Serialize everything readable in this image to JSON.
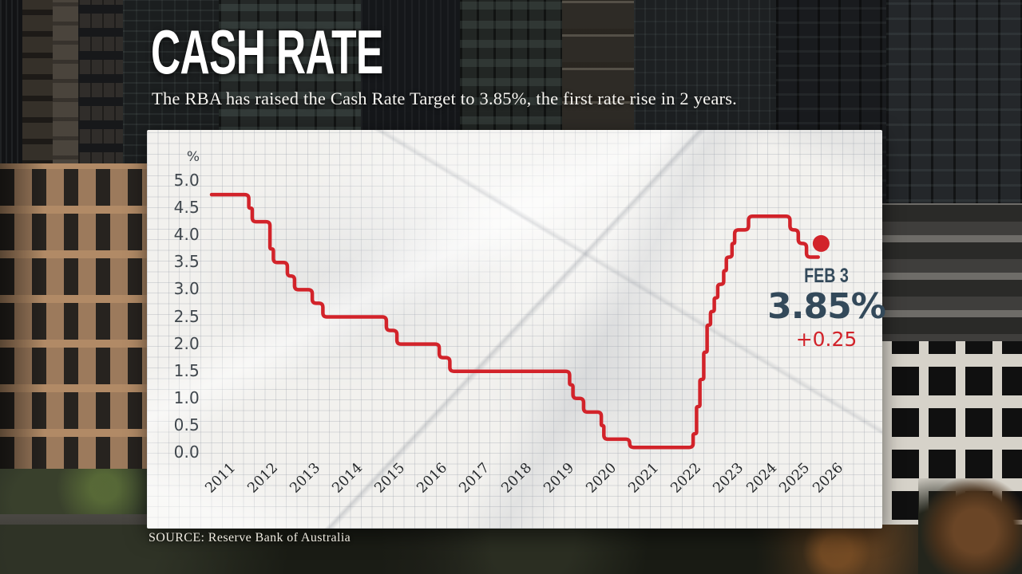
{
  "header": {
    "title": "CASH RATE",
    "subtitle": "The RBA has raised the Cash Rate Target to 3.85%, the first rate rise in 2 years."
  },
  "source": {
    "label": "SOURCE: Reserve Bank of Australia"
  },
  "annotation": {
    "date_label": "FEB 3",
    "value_label": "3.85%",
    "change_label": "+0.25"
  },
  "colors": {
    "line_red": "#d2232a",
    "annotation_navy": "#33495a",
    "paper": "#f2f1ee",
    "axis_text": "#40474d",
    "tick_text": "#26292c"
  },
  "chart_data": {
    "type": "line",
    "ylabel": "%",
    "ylim": [
      0,
      5.2
    ],
    "xlim": [
      2010.9,
      2026.6
    ],
    "grid": true,
    "x_ticks": [
      2011,
      2012,
      2013,
      2014,
      2015,
      2016,
      2017,
      2018,
      2019,
      2020,
      2021,
      2022,
      2023,
      2024,
      2025,
      2026
    ],
    "y_tick_labels": [
      "5.0",
      "4.5",
      "4.0",
      "3.5",
      "3.0",
      "2.5",
      "2.0",
      "1.5",
      "1.0",
      "0.5",
      "0.0"
    ],
    "series": [
      {
        "name": "Cash Rate Target",
        "step": true,
        "end_x": 2025.98,
        "points": [
          [
            2011.0,
            4.75
          ],
          [
            2011.88,
            4.5
          ],
          [
            2011.96,
            4.25
          ],
          [
            2012.38,
            3.75
          ],
          [
            2012.46,
            3.5
          ],
          [
            2012.79,
            3.25
          ],
          [
            2012.96,
            3.0
          ],
          [
            2013.38,
            2.75
          ],
          [
            2013.63,
            2.5
          ],
          [
            2015.13,
            2.25
          ],
          [
            2015.38,
            2.0
          ],
          [
            2016.38,
            1.75
          ],
          [
            2016.63,
            1.5
          ],
          [
            2019.46,
            1.25
          ],
          [
            2019.54,
            1.0
          ],
          [
            2019.79,
            0.75
          ],
          [
            2020.21,
            0.5
          ],
          [
            2020.27,
            0.25
          ],
          [
            2020.88,
            0.1
          ],
          [
            2022.38,
            0.35
          ],
          [
            2022.46,
            0.85
          ],
          [
            2022.54,
            1.35
          ],
          [
            2022.63,
            1.85
          ],
          [
            2022.71,
            2.35
          ],
          [
            2022.79,
            2.6
          ],
          [
            2022.88,
            2.85
          ],
          [
            2022.96,
            3.1
          ],
          [
            2023.13,
            3.35
          ],
          [
            2023.21,
            3.6
          ],
          [
            2023.38,
            3.85
          ],
          [
            2023.46,
            4.1
          ],
          [
            2023.88,
            4.35
          ],
          [
            2025.13,
            4.1
          ],
          [
            2025.38,
            3.85
          ],
          [
            2025.63,
            3.6
          ]
        ]
      }
    ],
    "end_marker": {
      "x": 2026.07,
      "y": 3.85
    }
  }
}
